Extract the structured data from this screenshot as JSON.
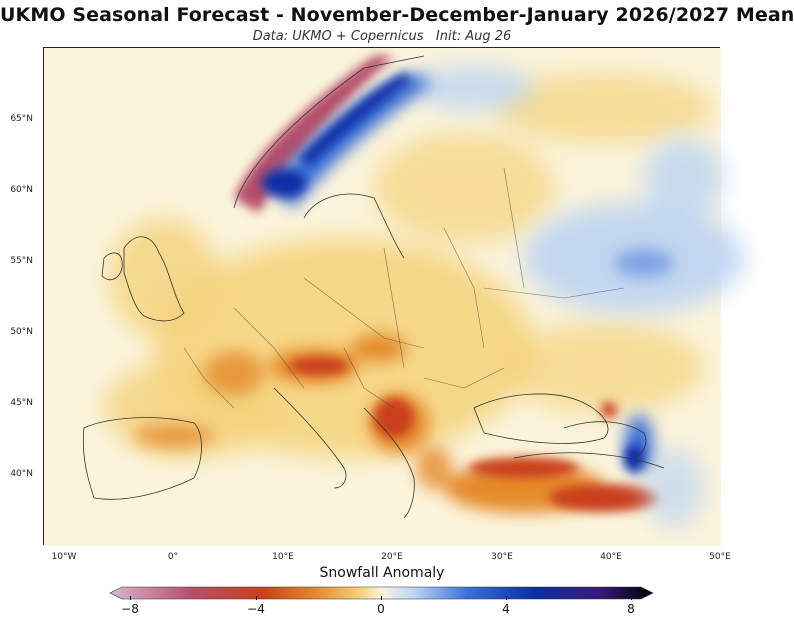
{
  "header": {
    "title": "UKMO Seasonal Forecast - November-December-January 2026/2027 Mean",
    "subtitle": "Data: UKMO + Copernicus   Init: Aug 26"
  },
  "map": {
    "variable": "Snowfall Anomaly",
    "lat_labels": [
      "65°N",
      "60°N",
      "55°N",
      "50°N",
      "45°N",
      "40°N"
    ],
    "lon_labels": [
      "10°W",
      "0°",
      "10°E",
      "20°E",
      "30°E",
      "40°E",
      "50°E"
    ],
    "colors": {
      "strong_negative": "#b5506a",
      "negative": "#c9401a",
      "moderate_negative": "#e58a2c",
      "weak_negative": "#f4d27a",
      "neutral": "#fbf4dc",
      "weak_positive": "#bcd4f2",
      "positive": "#3a6fd8",
      "strong_positive": "#0b2fa6"
    }
  },
  "colorbar": {
    "label": "Snowfall Anomaly",
    "ticks": [
      "−8",
      "−4",
      "0",
      "4",
      "8"
    ],
    "range": [
      -8,
      8
    ]
  }
}
